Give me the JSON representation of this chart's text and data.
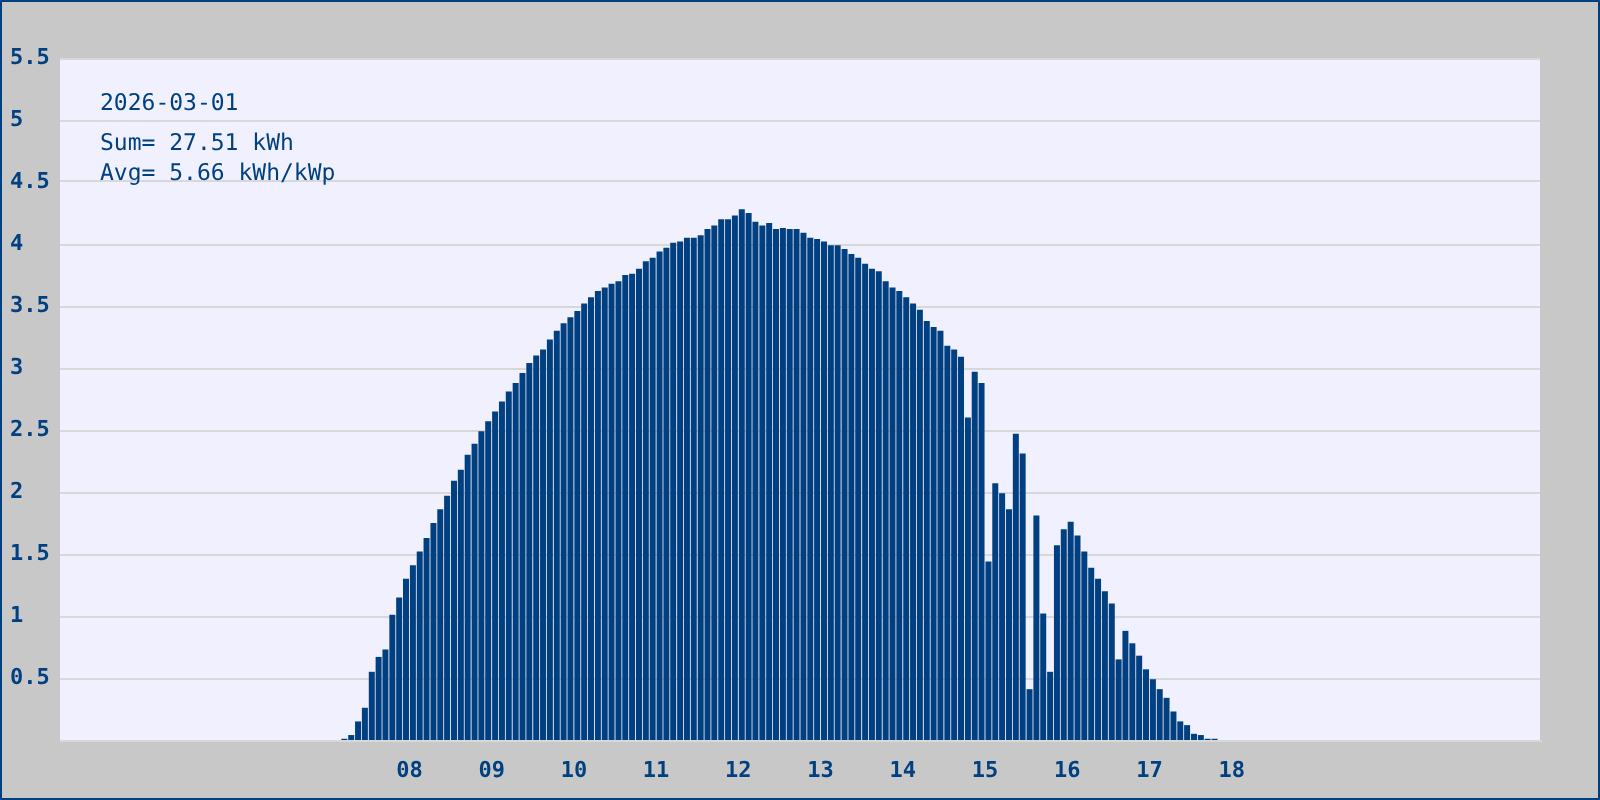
{
  "chart_data": {
    "type": "bar",
    "title": "2026-03-01",
    "annotations": [
      "Sum= 27.51 kWh",
      "Avg= 5.66 kWh/kWp"
    ],
    "x": [
      7.208,
      7.292,
      7.375,
      7.458,
      7.542,
      7.625,
      7.708,
      7.792,
      7.875,
      7.958,
      8.042,
      8.125,
      8.208,
      8.292,
      8.375,
      8.458,
      8.542,
      8.625,
      8.708,
      8.792,
      8.875,
      8.958,
      9.042,
      9.125,
      9.208,
      9.292,
      9.375,
      9.458,
      9.542,
      9.625,
      9.708,
      9.792,
      9.875,
      9.958,
      10.042,
      10.125,
      10.208,
      10.292,
      10.375,
      10.458,
      10.542,
      10.625,
      10.708,
      10.792,
      10.875,
      10.958,
      11.042,
      11.125,
      11.208,
      11.292,
      11.375,
      11.458,
      11.542,
      11.625,
      11.708,
      11.792,
      11.875,
      11.958,
      12.042,
      12.125,
      12.208,
      12.292,
      12.375,
      12.458,
      12.542,
      12.625,
      12.708,
      12.792,
      12.875,
      12.958,
      13.042,
      13.125,
      13.208,
      13.292,
      13.375,
      13.458,
      13.542,
      13.625,
      13.708,
      13.792,
      13.875,
      13.958,
      14.042,
      14.125,
      14.208,
      14.292,
      14.375,
      14.458,
      14.542,
      14.625,
      14.708,
      14.792,
      14.875,
      14.958,
      15.042,
      15.125,
      15.208,
      15.292,
      15.375,
      15.458,
      15.542,
      15.625,
      15.708,
      15.792,
      15.875,
      15.958,
      16.042,
      16.125,
      16.208,
      16.292,
      16.375,
      16.458,
      16.542,
      16.625,
      16.708,
      16.792,
      16.875,
      16.958,
      17.042,
      17.125,
      17.208,
      17.292,
      17.375,
      17.458,
      17.542,
      17.625,
      17.708,
      17.792
    ],
    "values": [
      0.01,
      0.04,
      0.15,
      0.26,
      0.55,
      0.67,
      0.73,
      1.01,
      1.15,
      1.3,
      1.41,
      1.52,
      1.63,
      1.75,
      1.86,
      1.97,
      2.09,
      2.18,
      2.3,
      2.39,
      2.49,
      2.57,
      2.65,
      2.73,
      2.81,
      2.88,
      2.96,
      3.04,
      3.1,
      3.15,
      3.23,
      3.3,
      3.36,
      3.41,
      3.46,
      3.52,
      3.57,
      3.62,
      3.65,
      3.68,
      3.7,
      3.75,
      3.76,
      3.8,
      3.86,
      3.89,
      3.94,
      3.97,
      4.01,
      4.02,
      4.05,
      4.05,
      4.07,
      4.12,
      4.15,
      4.2,
      4.2,
      4.23,
      4.28,
      4.25,
      4.18,
      4.15,
      4.17,
      4.12,
      4.13,
      4.12,
      4.12,
      4.09,
      4.05,
      4.04,
      4.02,
      3.99,
      3.99,
      3.96,
      3.92,
      3.89,
      3.84,
      3.8,
      3.78,
      3.7,
      3.65,
      3.62,
      3.57,
      3.52,
      3.47,
      3.38,
      3.33,
      3.3,
      3.18,
      3.15,
      3.09,
      2.6,
      2.97,
      2.88,
      1.44,
      2.07,
      1.99,
      1.86,
      2.47,
      2.31,
      0.41,
      1.81,
      1.02,
      0.55,
      1.57,
      1.7,
      1.76,
      1.65,
      1.52,
      1.39,
      1.3,
      1.2,
      1.1,
      0.65,
      0.88,
      0.78,
      0.68,
      0.57,
      0.49,
      0.41,
      0.34,
      0.23,
      0.15,
      0.12,
      0.05,
      0.04,
      0.01,
      0.01
    ],
    "color": "#004080",
    "xlim": [
      3.75,
      21.75
    ],
    "xticks": [
      {
        "value": 8,
        "label": "08"
      },
      {
        "value": 9,
        "label": "09"
      },
      10,
      11,
      12,
      13,
      14,
      15,
      16,
      17,
      18
    ],
    "ylim": [
      0,
      5.5
    ],
    "yticks": [
      0.5,
      1,
      1.5,
      2,
      2.5,
      3,
      3.5,
      4,
      4.5,
      5,
      5.5
    ],
    "grid": "y"
  }
}
